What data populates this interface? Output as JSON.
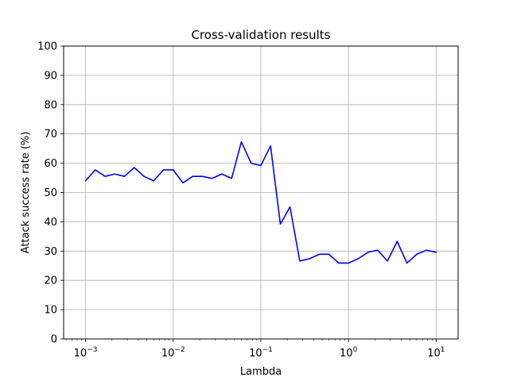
{
  "chart_data": {
    "type": "line",
    "title": "Cross-validation results",
    "xlabel": "Lambda",
    "ylabel": "Attack success rate (%)",
    "xscale": "log",
    "xlim": [
      0.000562,
      17.8
    ],
    "ylim": [
      0,
      100
    ],
    "grid": true,
    "xticks": [
      {
        "value": 0.001,
        "base": "10",
        "exp": "−3"
      },
      {
        "value": 0.01,
        "base": "10",
        "exp": "−2"
      },
      {
        "value": 0.1,
        "base": "10",
        "exp": "−1"
      },
      {
        "value": 1,
        "base": "10",
        "exp": "0"
      },
      {
        "value": 10,
        "base": "10",
        "exp": "1"
      }
    ],
    "yticks": [
      0,
      10,
      20,
      30,
      40,
      50,
      60,
      70,
      80,
      90,
      100
    ],
    "series": [
      {
        "color": "#0000ff",
        "x": [
          0.001,
          0.00129,
          0.00167,
          0.00215,
          0.00278,
          0.00359,
          0.00464,
          0.00599,
          0.00774,
          0.01,
          0.0129,
          0.0167,
          0.0215,
          0.0278,
          0.0359,
          0.0464,
          0.0599,
          0.0774,
          0.1,
          0.129,
          0.167,
          0.215,
          0.278,
          0.359,
          0.464,
          0.599,
          0.774,
          1.0,
          1.29,
          1.67,
          2.15,
          2.78,
          3.59,
          4.64,
          5.99,
          7.74,
          10.0
        ],
        "y": [
          54.0,
          57.7,
          55.5,
          56.3,
          55.5,
          58.5,
          55.5,
          54.0,
          57.7,
          57.7,
          53.3,
          55.5,
          55.5,
          54.8,
          56.3,
          54.8,
          67.3,
          60.0,
          59.2,
          65.9,
          39.2,
          45.1,
          26.6,
          27.4,
          28.9,
          28.9,
          25.9,
          25.9,
          27.4,
          29.6,
          30.3,
          26.6,
          33.3,
          25.9,
          28.9,
          30.3,
          29.6
        ]
      }
    ]
  }
}
